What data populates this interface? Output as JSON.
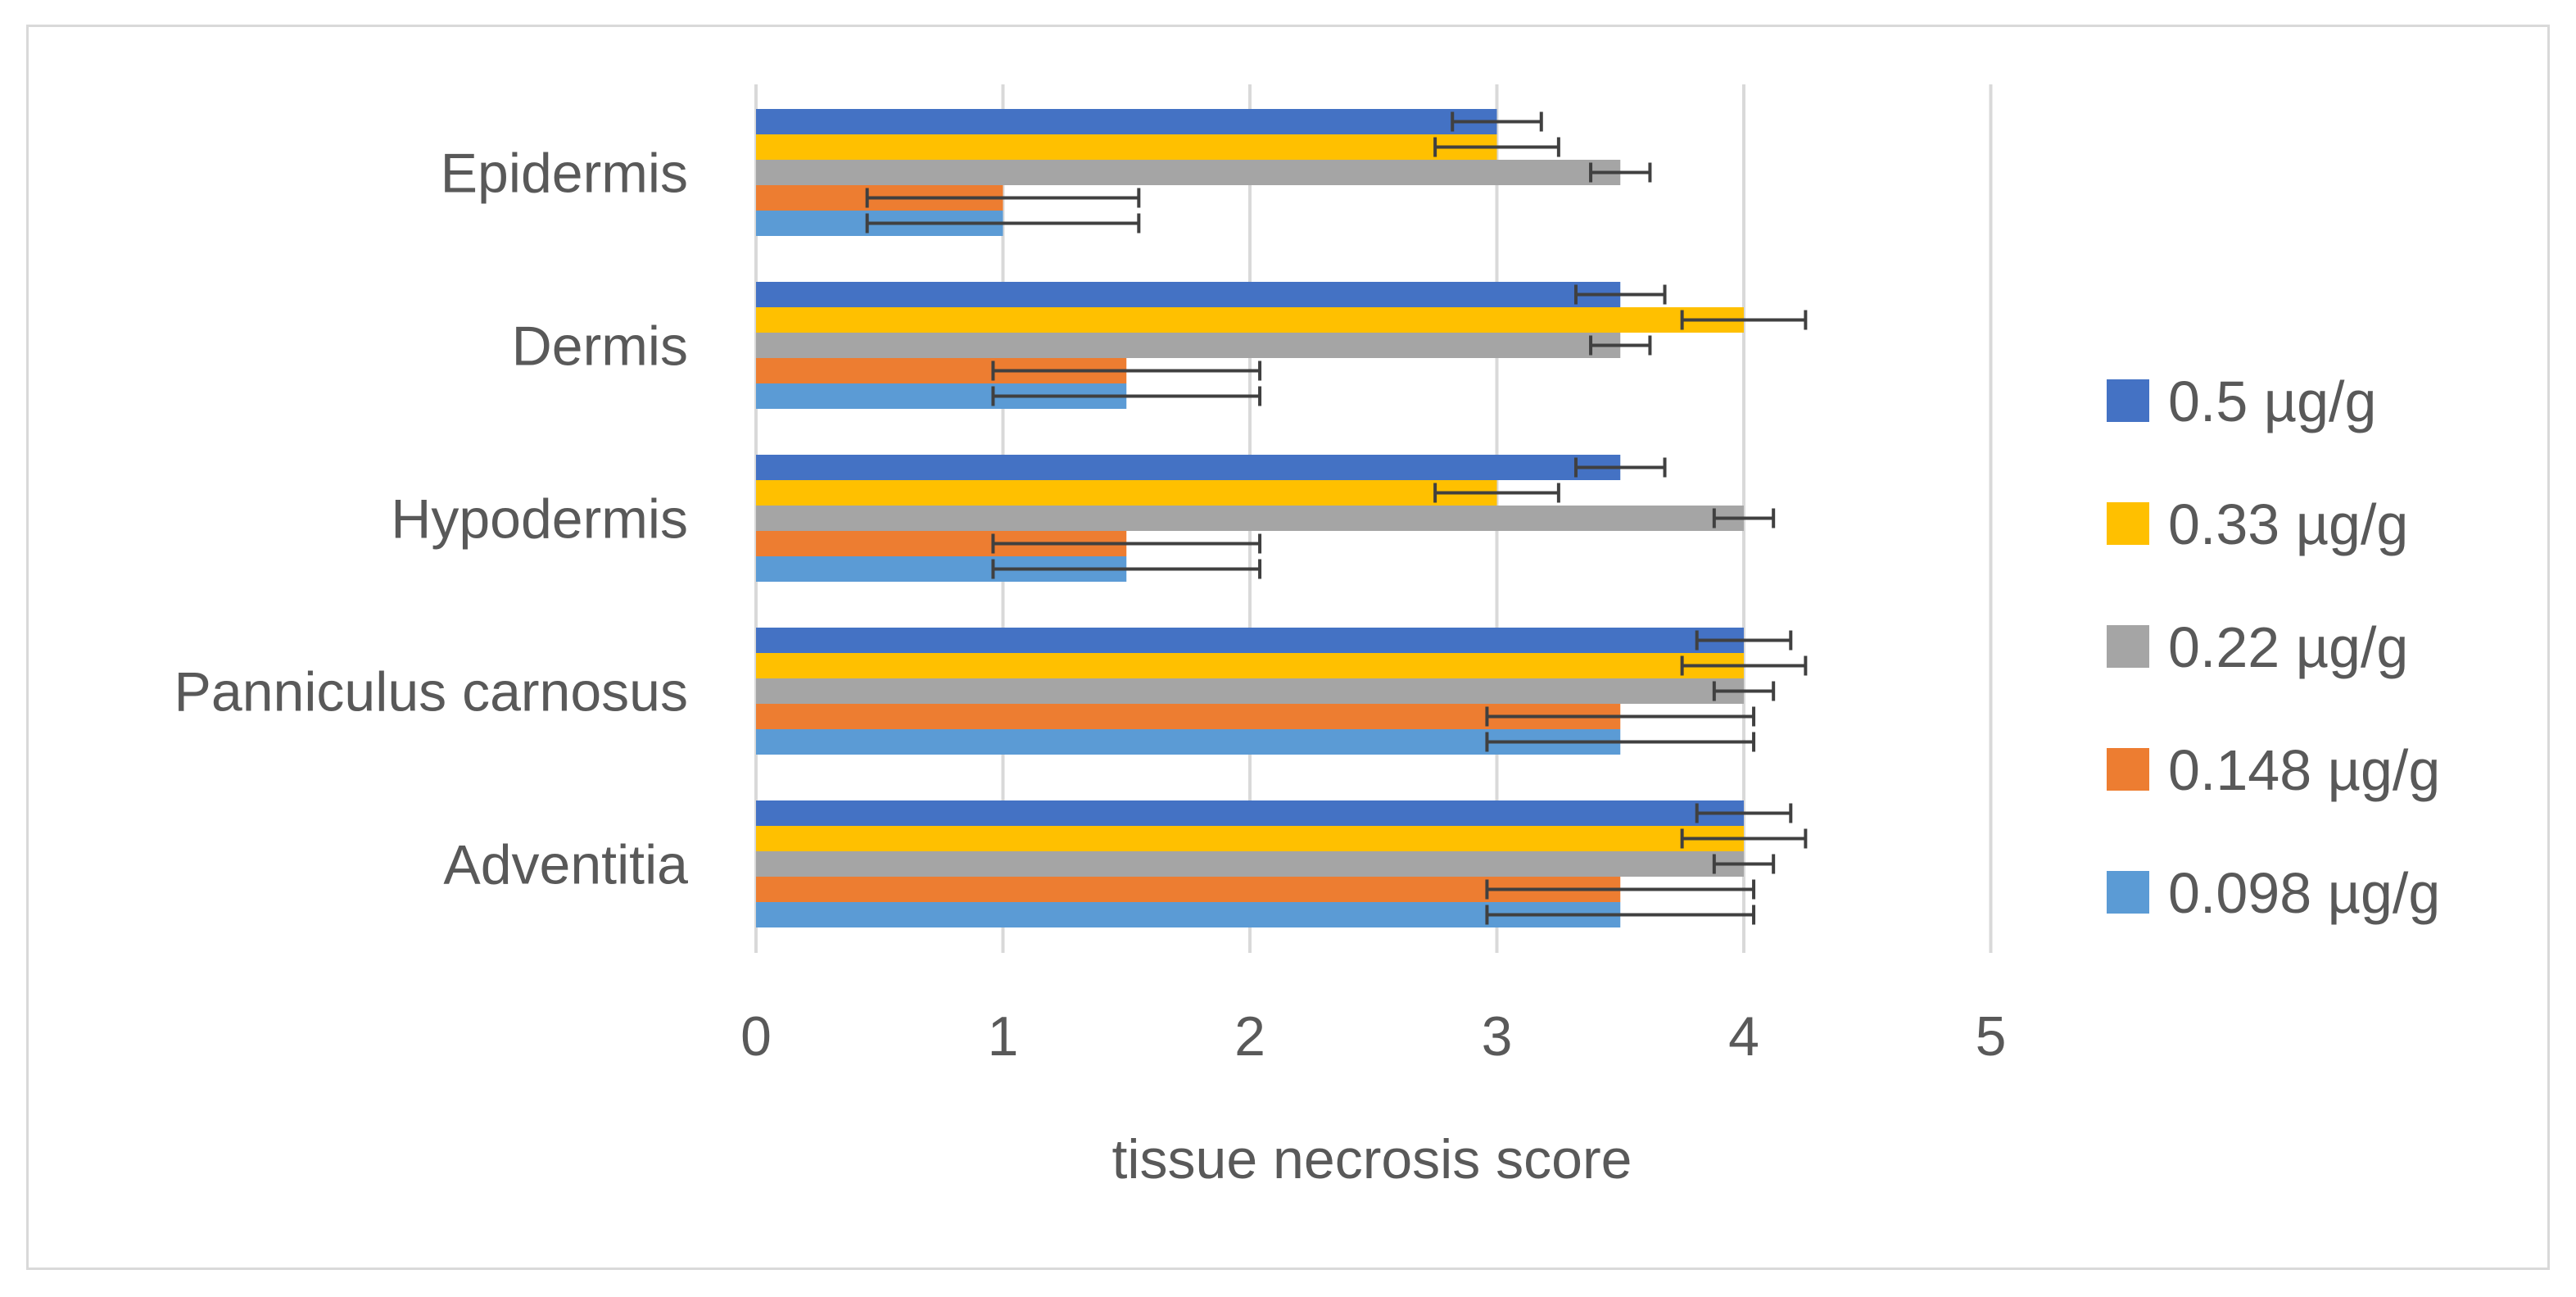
{
  "chart_data": {
    "type": "bar",
    "orientation": "horizontal",
    "title": "",
    "xlabel": "tissue necrosis score",
    "ylabel": "",
    "xlim": [
      0,
      5
    ],
    "x_ticks": [
      "0",
      "1",
      "2",
      "3",
      "4",
      "5"
    ],
    "grid": true,
    "legend_position": "right",
    "categories": [
      "Epidermis",
      "Dermis",
      "Hypodermis",
      "Panniculus carnosus",
      "Adventitia"
    ],
    "series": [
      {
        "name": "0.5 µg/g",
        "color": "#4472c4",
        "values": [
          3.0,
          3.5,
          3.5,
          4.0,
          4.0
        ],
        "errors": [
          0.18,
          0.18,
          0.18,
          0.19,
          0.19
        ]
      },
      {
        "name": "0.33 µg/g",
        "color": "#ffc000",
        "values": [
          3.0,
          4.0,
          3.0,
          4.0,
          4.0
        ],
        "errors": [
          0.25,
          0.25,
          0.25,
          0.25,
          0.25
        ]
      },
      {
        "name": "0.22 µg/g",
        "color": "#a5a5a5",
        "values": [
          3.5,
          3.5,
          4.0,
          4.0,
          4.0
        ],
        "errors": [
          0.12,
          0.12,
          0.12,
          0.12,
          0.12
        ]
      },
      {
        "name": "0.148 µg/g",
        "color": "#ed7d31",
        "values": [
          1.0,
          1.5,
          1.5,
          3.5,
          3.5
        ],
        "errors": [
          0.55,
          0.54,
          0.54,
          0.54,
          0.54
        ]
      },
      {
        "name": "0.098 µg/g",
        "color": "#5b9bd5",
        "values": [
          1.0,
          1.5,
          1.5,
          3.5,
          3.5
        ],
        "errors": [
          0.55,
          0.54,
          0.54,
          0.54,
          0.54
        ]
      }
    ]
  }
}
